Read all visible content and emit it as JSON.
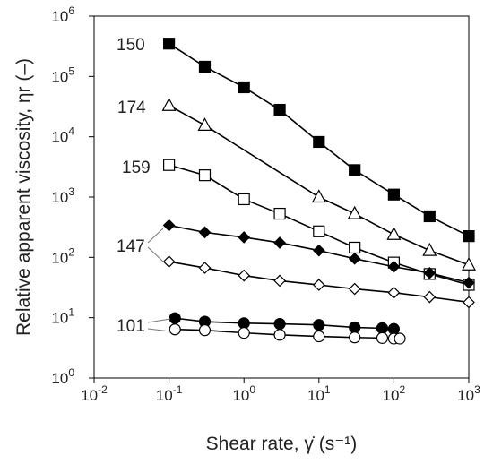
{
  "chart_data": {
    "type": "scatter",
    "xlabel": "Shear rate, γ̇ (s⁻¹)",
    "ylabel": "Relative apparent viscosity, ηr (–)",
    "x_scale": "log",
    "y_scale": "log",
    "xlim": [
      0.01,
      1000
    ],
    "ylim": [
      1,
      1000000
    ],
    "x_ticks": [
      {
        "base": "10",
        "exp": "-2",
        "value": 0.01
      },
      {
        "base": "10",
        "exp": "-1",
        "value": 0.1
      },
      {
        "base": "10",
        "exp": "0",
        "value": 1
      },
      {
        "base": "10",
        "exp": "1",
        "value": 10
      },
      {
        "base": "10",
        "exp": "2",
        "value": 100
      },
      {
        "base": "10",
        "exp": "3",
        "value": 1000
      }
    ],
    "y_ticks": [
      {
        "base": "10",
        "exp": "0",
        "value": 1
      },
      {
        "base": "10",
        "exp": "1",
        "value": 10
      },
      {
        "base": "10",
        "exp": "2",
        "value": 100
      },
      {
        "base": "10",
        "exp": "3",
        "value": 1000
      },
      {
        "base": "10",
        "exp": "4",
        "value": 10000
      },
      {
        "base": "10",
        "exp": "5",
        "value": 100000
      },
      {
        "base": "10",
        "exp": "6",
        "value": 1000000
      }
    ],
    "grid": false,
    "legend": "none",
    "series_labels": [
      "150",
      "174",
      "159",
      "147",
      "101"
    ],
    "series": [
      {
        "marker": "filled-square",
        "color": "#000000",
        "x": [
          0.1,
          0.3,
          1,
          3,
          10,
          30,
          100,
          300,
          1000
        ],
        "y": [
          350000,
          145000,
          66000,
          28000,
          8200,
          2800,
          1100,
          480,
          225
        ]
      },
      {
        "marker": "open-triangle",
        "color": "#000000",
        "x": [
          0.1,
          0.3,
          10,
          30,
          100,
          300,
          1000
        ],
        "y": [
          33000,
          15500,
          1000,
          530,
          240,
          130,
          75
        ]
      },
      {
        "marker": "open-square",
        "color": "#000000",
        "x": [
          0.1,
          0.3,
          1,
          3,
          10,
          30,
          100,
          300,
          1000
        ],
        "y": [
          3400,
          2300,
          920,
          530,
          270,
          145,
          82,
          53,
          35
        ]
      },
      {
        "marker": "filled-diamond",
        "color": "#000000",
        "x": [
          0.1,
          0.3,
          1,
          3,
          10,
          30,
          100,
          300,
          1000
        ],
        "y": [
          340,
          260,
          215,
          175,
          130,
          95,
          70,
          55,
          38
        ]
      },
      {
        "marker": "open-diamond",
        "color": "#000000",
        "x": [
          0.1,
          0.3,
          1,
          3,
          10,
          30,
          100,
          300,
          1000
        ],
        "y": [
          85,
          67,
          50,
          41,
          35,
          30,
          26,
          22,
          18
        ]
      },
      {
        "marker": "filled-circle",
        "color": "#000000",
        "x": [
          0.12,
          0.3,
          1,
          3,
          10,
          30,
          70,
          100
        ],
        "y": [
          9.8,
          8.6,
          8.1,
          7.9,
          7.6,
          6.9,
          6.7,
          6.5
        ]
      },
      {
        "marker": "open-circle",
        "color": "#000000",
        "x": [
          0.12,
          0.3,
          1,
          3,
          10,
          30,
          70,
          100,
          120
        ],
        "y": [
          6.4,
          6.2,
          5.6,
          5.2,
          4.9,
          4.7,
          4.6,
          4.5,
          4.5
        ]
      }
    ]
  }
}
